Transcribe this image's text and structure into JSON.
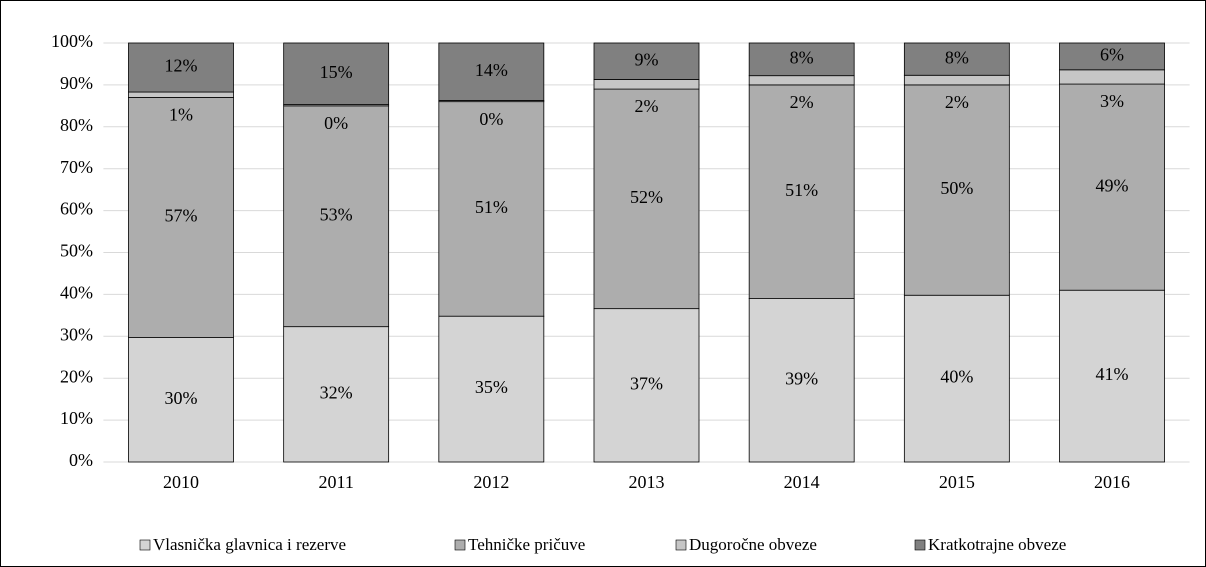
{
  "chart_data": {
    "type": "stacked_bar",
    "categories": [
      "2010",
      "2011",
      "2012",
      "2013",
      "2014",
      "2015",
      "2016"
    ],
    "series": [
      {
        "name": "Vlasnička glavnica i rezerve",
        "color": "#d4d4d4",
        "values": [
          29.7,
          32.3,
          34.8,
          36.6,
          39.0,
          39.8,
          41.0
        ],
        "value_labels": [
          "30%",
          "32%",
          "35%",
          "37%",
          "39%",
          "40%",
          "41%"
        ]
      },
      {
        "name": "Tehničke pričuve",
        "color": "#adadad",
        "values": [
          57.3,
          52.7,
          51.2,
          52.4,
          51.0,
          50.2,
          49.2
        ],
        "value_labels": [
          "57%",
          "53%",
          "51%",
          "52%",
          "51%",
          "50%",
          "49%"
        ]
      },
      {
        "name": "Dugoročne obveze",
        "color": "#c6c6c6",
        "values": [
          1.3,
          0.3,
          0.3,
          2.3,
          2.2,
          2.3,
          3.4
        ],
        "value_labels": [
          "1%",
          "0%",
          "0%",
          "2%",
          "2%",
          "2%",
          "3%"
        ]
      },
      {
        "name": "Kratkotrajne obveze",
        "color": "#808080",
        "values": [
          11.7,
          14.7,
          13.7,
          8.7,
          7.8,
          7.7,
          6.4
        ],
        "value_labels": [
          "12%",
          "15%",
          "14%",
          "9%",
          "8%",
          "8%",
          "6%"
        ]
      }
    ],
    "ylim": [
      0,
      100
    ],
    "yticks": [
      {
        "value": 0,
        "label": "0%"
      },
      {
        "value": 10,
        "label": "10%"
      },
      {
        "value": 20,
        "label": "20%"
      },
      {
        "value": 30,
        "label": "30%"
      },
      {
        "value": 40,
        "label": "40%"
      },
      {
        "value": 50,
        "label": "50%"
      },
      {
        "value": 60,
        "label": "60%"
      },
      {
        "value": 70,
        "label": "70%"
      },
      {
        "value": 80,
        "label": "80%"
      },
      {
        "value": 90,
        "label": "90%"
      },
      {
        "value": 100,
        "label": "100%"
      }
    ],
    "grid": true,
    "legend": "bottom"
  }
}
